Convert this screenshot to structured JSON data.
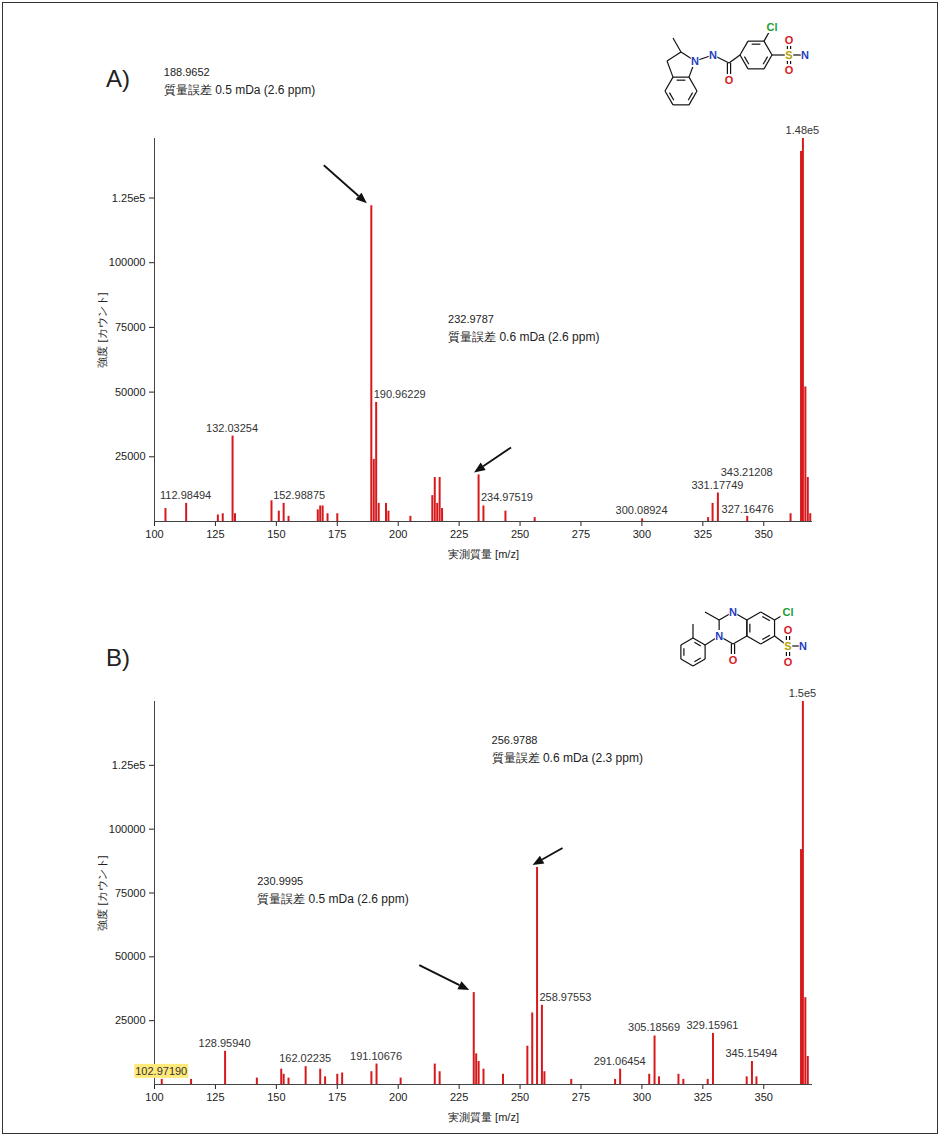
{
  "chart_data": [
    {
      "type": "bar",
      "title": "A)",
      "x_label": "実測質量 [m/z]",
      "y_label": "強度 [カウント]",
      "color": "#d7191c",
      "x": [
        104.5,
        112.98494,
        126.0,
        128.0,
        132.03254,
        133.03,
        148.0,
        152.98875,
        151.0,
        155.0,
        167.0,
        168.0,
        169.0,
        171.0,
        175.0,
        188.9652,
        189.97,
        190.96229,
        192.0,
        195.0,
        196.0,
        205.0,
        214.0,
        215.0,
        216.0,
        217.0,
        218.0,
        232.9787,
        234.97519,
        244.0,
        256.0,
        300.08924,
        327.16476,
        329.0,
        331.17749,
        343.21208,
        361.0,
        365.3,
        366.07,
        367.07,
        368.07,
        369.07
      ],
      "values": [
        5000,
        7000,
        2500,
        3000,
        33000,
        3000,
        8000,
        7000,
        4000,
        2000,
        4500,
        6000,
        6000,
        3000,
        3000,
        122000,
        24000,
        46000,
        7000,
        7000,
        4000,
        2000,
        10000,
        17000,
        7000,
        17000,
        5000,
        18000,
        6000,
        4000,
        1500,
        1000,
        1500,
        7000,
        11000,
        2000,
        3000,
        143000,
        148000,
        52000,
        17000,
        3000
      ],
      "xlim": [
        100,
        370
      ],
      "ylim": [
        0,
        148000
      ],
      "xticks": [
        100,
        125,
        150,
        175,
        200,
        225,
        250,
        275,
        300,
        325,
        350
      ],
      "yticks": [
        25000,
        50000,
        75000,
        100000,
        {
          "value": 125000,
          "label": "1.25e5"
        }
      ],
      "annotations": [
        {
          "x": 112.98494,
          "text": "112.98494"
        },
        {
          "x": 132.03254,
          "text": "132.03254"
        },
        {
          "x": 152.98875,
          "text": "152.98875"
        },
        {
          "x": 190.96229,
          "text": "190.96229"
        },
        {
          "x": 234.97519,
          "text": "234.97519"
        },
        {
          "x": 300.08924,
          "text": "300.08924"
        },
        {
          "x": 327.16476,
          "text": "327.16476"
        },
        {
          "x": 331.17749,
          "text": "331.17749"
        },
        {
          "x": 343.21208,
          "text": "343.21208"
        },
        {
          "x": 366.07,
          "text": "1.48e5"
        }
      ],
      "callouts": [
        {
          "x": 188.9652,
          "lines": [
            "188.9652",
            "質量誤差 0.5 mDa (2.6 ppm)"
          ]
        },
        {
          "x": 232.9787,
          "lines": [
            "232.9787",
            "質量誤差 0.6 mDa (2.6 ppm)"
          ]
        }
      ],
      "structure": {
        "atoms": [
          {
            "label": "N",
            "color": "#1f3fbf"
          },
          {
            "label": "N",
            "color": "#1f3fbf"
          },
          {
            "label": "O",
            "color": "#d62020"
          },
          {
            "label": "Cl",
            "color": "#1e9e3a"
          },
          {
            "label": "S",
            "color": "#b8a000"
          },
          {
            "label": "O",
            "color": "#d62020"
          },
          {
            "label": "O",
            "color": "#d62020"
          },
          {
            "label": "N",
            "color": "#1f3fbf"
          }
        ]
      }
    },
    {
      "type": "bar",
      "title": "B)",
      "x_label": "実測質量 [m/z]",
      "y_label": "強度 [カウント]",
      "color": "#d7191c",
      "x": [
        102.9719,
        115.0,
        128.9594,
        142.0,
        152.0,
        153.0,
        155.0,
        162.02235,
        168.0,
        170.0,
        175.0,
        177.0,
        189.0,
        191.10676,
        201.0,
        215.0,
        217.0,
        230.9995,
        232.0,
        233.0,
        235.0,
        243.0,
        253.0,
        255.0,
        256.9788,
        258.97553,
        260.0,
        271.0,
        289.0,
        291.06454,
        303.0,
        305.18569,
        307.0,
        315.0,
        317.0,
        327.0,
        329.15961,
        343.0,
        345.15494,
        347.0,
        365.3,
        366.06,
        367.06,
        368.06
      ],
      "values": [
        2000,
        2000,
        13000,
        2500,
        6000,
        4000,
        2500,
        7000,
        6000,
        3000,
        4000,
        4500,
        5000,
        8000,
        2500,
        8000,
        5000,
        36000,
        12000,
        9000,
        6000,
        4000,
        15000,
        28000,
        85000,
        31000,
        5000,
        2000,
        2000,
        6000,
        4000,
        19000,
        3000,
        4000,
        2000,
        2000,
        20000,
        3000,
        9000,
        3000,
        92000,
        150000,
        34000,
        11000
      ],
      "xlim": [
        100,
        370
      ],
      "ylim": [
        0,
        150000
      ],
      "xticks": [
        100,
        125,
        150,
        175,
        200,
        225,
        250,
        275,
        300,
        325,
        350
      ],
      "yticks": [
        25000,
        50000,
        75000,
        100000,
        {
          "value": 125000,
          "label": "1.25e5"
        }
      ],
      "annotations": [
        {
          "x": 102.9719,
          "text": "102.97190",
          "color": "#ffe97a"
        },
        {
          "x": 128.9594,
          "text": "128.95940"
        },
        {
          "x": 162.02235,
          "text": "162.02235"
        },
        {
          "x": 191.10676,
          "text": "191.10676"
        },
        {
          "x": 258.97553,
          "text": "258.97553"
        },
        {
          "x": 291.06454,
          "text": "291.06454"
        },
        {
          "x": 305.18569,
          "text": "305.18569"
        },
        {
          "x": 329.15961,
          "text": "329.15961"
        },
        {
          "x": 345.15494,
          "text": "345.15494"
        },
        {
          "x": 366.06,
          "text": "1.5e5"
        }
      ],
      "callouts": [
        {
          "x": 256.9788,
          "lines": [
            "256.9788",
            "質量誤差 0.6 mDa (2.3 ppm)"
          ]
        },
        {
          "x": 230.9995,
          "lines": [
            "230.9995",
            "質量誤差 0.5 mDa (2.6 ppm)"
          ]
        }
      ],
      "structure": {
        "atoms": [
          {
            "label": "N",
            "color": "#1f3fbf"
          },
          {
            "label": "N",
            "color": "#1f3fbf"
          },
          {
            "label": "O",
            "color": "#d62020"
          },
          {
            "label": "Cl",
            "color": "#1e9e3a"
          },
          {
            "label": "S",
            "color": "#b8a000"
          },
          {
            "label": "O",
            "color": "#d62020"
          },
          {
            "label": "O",
            "color": "#d62020"
          },
          {
            "label": "N",
            "color": "#1f3fbf"
          }
        ]
      }
    }
  ]
}
